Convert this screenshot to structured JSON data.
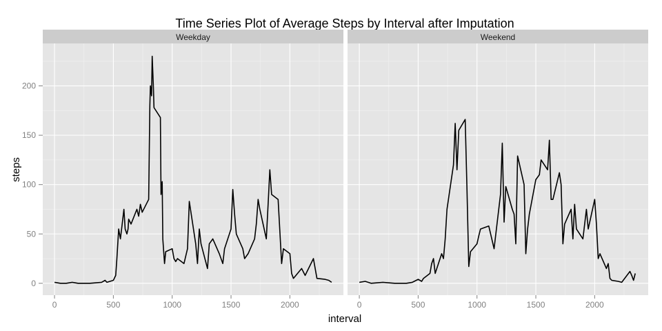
{
  "chart_data": {
    "type": "line",
    "title": "Time Series Plot of Average Steps by Interval after Imputation",
    "xlabel": "interval",
    "ylabel": "steps",
    "xlim": [
      -100,
      2455
    ],
    "ylim": [
      -12,
      243
    ],
    "x_ticks": [
      0,
      500,
      1000,
      1500,
      2000
    ],
    "y_ticks": [
      0,
      50,
      100,
      150,
      200
    ],
    "grid": true,
    "panels": [
      {
        "name": "Weekday",
        "x": [
          0,
          50,
          100,
          150,
          200,
          300,
          400,
          430,
          445,
          500,
          520,
          530,
          545,
          560,
          575,
          590,
          600,
          615,
          625,
          630,
          650,
          700,
          715,
          730,
          745,
          800,
          810,
          815,
          825,
          830,
          840,
          845,
          900,
          905,
          915,
          920,
          935,
          945,
          1000,
          1015,
          1030,
          1045,
          1100,
          1130,
          1145,
          1200,
          1215,
          1230,
          1245,
          1300,
          1315,
          1345,
          1400,
          1430,
          1445,
          1500,
          1515,
          1530,
          1545,
          1600,
          1615,
          1645,
          1700,
          1715,
          1730,
          1745,
          1800,
          1815,
          1830,
          1845,
          1900,
          1930,
          1945,
          2000,
          2015,
          2030,
          2100,
          2130,
          2200,
          2230,
          2300,
          2330,
          2355
        ],
        "values": [
          1,
          0,
          0,
          1,
          0,
          0,
          1,
          3,
          1,
          3,
          8,
          25,
          55,
          45,
          60,
          75,
          55,
          50,
          55,
          65,
          60,
          75,
          68,
          80,
          72,
          85,
          180,
          200,
          190,
          230,
          200,
          178,
          168,
          90,
          103,
          45,
          20,
          32,
          35,
          25,
          22,
          25,
          20,
          35,
          83,
          40,
          20,
          55,
          40,
          15,
          40,
          45,
          30,
          20,
          35,
          55,
          95,
          70,
          50,
          35,
          25,
          30,
          45,
          60,
          85,
          75,
          45,
          80,
          115,
          90,
          85,
          20,
          35,
          30,
          10,
          5,
          15,
          8,
          25,
          5,
          4,
          3,
          1
        ]
      },
      {
        "name": "Weekend",
        "x": [
          0,
          50,
          100,
          200,
          300,
          400,
          450,
          500,
          530,
          545,
          600,
          615,
          630,
          645,
          700,
          715,
          730,
          745,
          800,
          815,
          830,
          845,
          900,
          915,
          930,
          945,
          1000,
          1015,
          1030,
          1100,
          1145,
          1200,
          1215,
          1230,
          1245,
          1300,
          1315,
          1330,
          1345,
          1400,
          1415,
          1430,
          1445,
          1500,
          1530,
          1545,
          1600,
          1615,
          1630,
          1645,
          1700,
          1715,
          1730,
          1745,
          1800,
          1815,
          1830,
          1845,
          1900,
          1930,
          1945,
          2000,
          2015,
          2030,
          2045,
          2100,
          2115,
          2130,
          2145,
          2200,
          2230,
          2300,
          2315,
          2330,
          2345
        ],
        "values": [
          1,
          2,
          0,
          1,
          0,
          0,
          1,
          4,
          2,
          5,
          10,
          20,
          25,
          10,
          30,
          25,
          45,
          75,
          120,
          162,
          115,
          155,
          166,
          95,
          17,
          32,
          40,
          48,
          55,
          58,
          35,
          90,
          142,
          62,
          98,
          75,
          70,
          40,
          129,
          100,
          30,
          55,
          70,
          105,
          110,
          125,
          115,
          145,
          85,
          85,
          112,
          100,
          40,
          60,
          75,
          45,
          80,
          55,
          45,
          75,
          55,
          85,
          60,
          25,
          30,
          15,
          20,
          5,
          3,
          2,
          1,
          12,
          8,
          3,
          10
        ]
      }
    ]
  }
}
